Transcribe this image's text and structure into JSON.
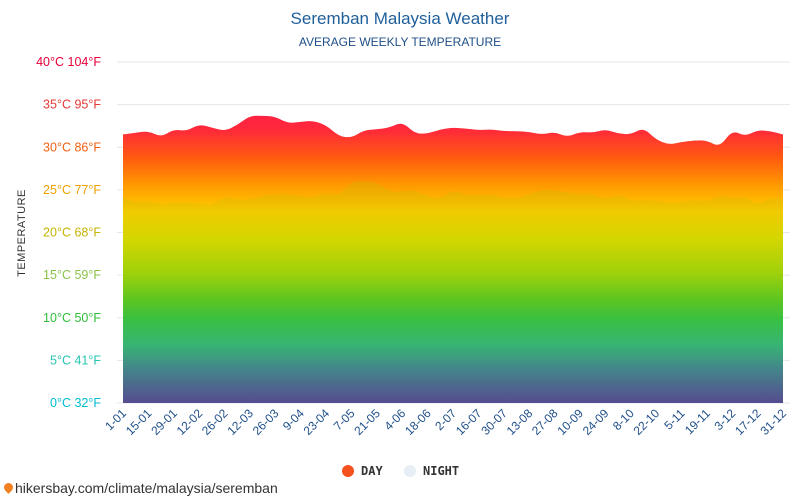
{
  "chart_data": {
    "type": "area",
    "title": "Seremban Malaysia Weather",
    "subtitle": "AVERAGE WEEKLY TEMPERATURE",
    "ylabel": "TEMPERATURE",
    "ylim": [
      0,
      40
    ],
    "yticks": [
      {
        "value": 0,
        "label": "0°C 32°F"
      },
      {
        "value": 5,
        "label": "5°C 41°F"
      },
      {
        "value": 10,
        "label": "10°C 50°F"
      },
      {
        "value": 15,
        "label": "15°C 59°F"
      },
      {
        "value": 20,
        "label": "20°C 68°F"
      },
      {
        "value": 25,
        "label": "25°C 77°F"
      },
      {
        "value": 30,
        "label": "30°C 86°F"
      },
      {
        "value": 35,
        "label": "35°C 95°F"
      },
      {
        "value": 40,
        "label": "40°C 104°F"
      }
    ],
    "xticks": [
      "1-01",
      "15-01",
      "29-01",
      "12-02",
      "26-02",
      "12-03",
      "26-03",
      "9-04",
      "23-04",
      "7-05",
      "21-05",
      "4-06",
      "18-06",
      "2-07",
      "16-07",
      "30-07",
      "13-08",
      "27-08",
      "10-09",
      "24-09",
      "8-10",
      "22-10",
      "5-11",
      "19-11",
      "3-12",
      "17-12",
      "31-12"
    ],
    "series": [
      {
        "name": "DAY",
        "color": "#f4511e",
        "values": [
          31.5,
          31.7,
          31.9,
          31.2,
          32.1,
          31.9,
          32.7,
          32.3,
          31.9,
          32.6,
          33.7,
          33.7,
          33.6,
          32.8,
          33.0,
          33.1,
          32.6,
          31.3,
          31.1,
          32.0,
          32.1,
          32.3,
          33.0,
          31.6,
          31.6,
          32.1,
          32.3,
          32.2,
          32.0,
          32.1,
          31.9,
          31.9,
          31.8,
          31.5,
          31.8,
          31.2,
          31.8,
          31.7,
          32.1,
          31.6,
          31.5,
          32.3,
          30.9,
          30.3,
          30.6,
          30.8,
          30.8,
          30.0,
          32.0,
          31.3,
          32.0,
          31.9,
          31.5
        ]
      },
      {
        "name": "NIGHT",
        "color": "#e8eef5",
        "values": [
          24.1,
          23.5,
          23.7,
          23.3,
          23.5,
          23.5,
          23.4,
          23.2,
          24.2,
          23.8,
          23.9,
          24.3,
          24.5,
          24.5,
          24.3,
          24.1,
          24.7,
          24.3,
          26.0,
          26.0,
          25.9,
          24.8,
          24.8,
          25.0,
          24.2,
          24.0,
          25.0,
          24.4,
          24.4,
          24.5,
          24.0,
          24.0,
          24.5,
          25.0,
          25.0,
          24.7,
          24.5,
          24.5,
          23.9,
          24.5,
          23.7,
          23.8,
          23.8,
          23.5,
          23.5,
          23.9,
          23.6,
          24.4,
          24.0,
          24.2,
          23.2,
          24.0,
          23.9
        ]
      }
    ],
    "legend_position": "bottom",
    "grid": true
  },
  "footer": {
    "source": "hikersbay.com/climate/malaysia/seremban"
  }
}
